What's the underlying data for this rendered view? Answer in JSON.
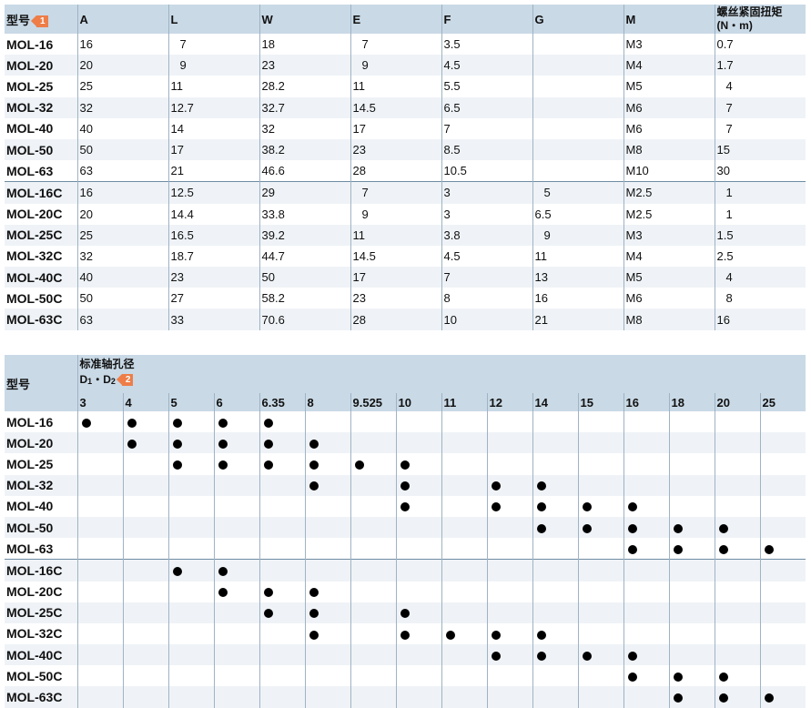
{
  "dim_table": {
    "model_label": "型号",
    "badge": "1",
    "columns": [
      "A",
      "L",
      "W",
      "E",
      "F",
      "G",
      "M"
    ],
    "torque_header_line1": "螺丝紧固扭矩",
    "torque_header_line2": "(N・m)",
    "rows": [
      {
        "model": "MOL-16",
        "A": "16",
        "L": "7",
        "W": "18",
        "E": "7",
        "F": "3.5",
        "G": "",
        "M": "M3",
        "T": "0.7"
      },
      {
        "model": "MOL-20",
        "A": "20",
        "L": "9",
        "W": "23",
        "E": "9",
        "F": "4.5",
        "G": "",
        "M": "M4",
        "T": "1.7"
      },
      {
        "model": "MOL-25",
        "A": "25",
        "L": "11",
        "W": "28.2",
        "E": "11",
        "F": "5.5",
        "G": "",
        "M": "M5",
        "T": "4"
      },
      {
        "model": "MOL-32",
        "A": "32",
        "L": "12.7",
        "W": "32.7",
        "E": "14.5",
        "F": "6.5",
        "G": "",
        "M": "M6",
        "T": "7"
      },
      {
        "model": "MOL-40",
        "A": "40",
        "L": "14",
        "W": "32",
        "E": "17",
        "F": "7",
        "G": "",
        "M": "M6",
        "T": "7"
      },
      {
        "model": "MOL-50",
        "A": "50",
        "L": "17",
        "W": "38.2",
        "E": "23",
        "F": "8.5",
        "G": "",
        "M": "M8",
        "T": "15"
      },
      {
        "model": "MOL-63",
        "A": "63",
        "L": "21",
        "W": "46.6",
        "E": "28",
        "F": "10.5",
        "G": "",
        "M": "M10",
        "T": "30"
      },
      {
        "model": "MOL-16C",
        "A": "16",
        "L": "12.5",
        "W": "29",
        "E": "7",
        "F": "3",
        "G": "5",
        "M": "M2.5",
        "T": "1"
      },
      {
        "model": "MOL-20C",
        "A": "20",
        "L": "14.4",
        "W": "33.8",
        "E": "9",
        "F": "3",
        "G": "6.5",
        "M": "M2.5",
        "T": "1"
      },
      {
        "model": "MOL-25C",
        "A": "25",
        "L": "16.5",
        "W": "39.2",
        "E": "11",
        "F": "3.8",
        "G": "9",
        "M": "M3",
        "T": "1.5"
      },
      {
        "model": "MOL-32C",
        "A": "32",
        "L": "18.7",
        "W": "44.7",
        "E": "14.5",
        "F": "4.5",
        "G": "11",
        "M": "M4",
        "T": "2.5"
      },
      {
        "model": "MOL-40C",
        "A": "40",
        "L": "23",
        "W": "50",
        "E": "17",
        "F": "7",
        "G": "13",
        "M": "M5",
        "T": "4"
      },
      {
        "model": "MOL-50C",
        "A": "50",
        "L": "27",
        "W": "58.2",
        "E": "23",
        "F": "8",
        "G": "16",
        "M": "M6",
        "T": "8"
      },
      {
        "model": "MOL-63C",
        "A": "63",
        "L": "33",
        "W": "70.6",
        "E": "28",
        "F": "10",
        "G": "21",
        "M": "M8",
        "T": "16"
      }
    ]
  },
  "bore_table": {
    "model_label": "型号",
    "title": "标准轴孔径",
    "sub_d": "D",
    "sub_1": "1",
    "sub_sep": "・D",
    "sub_2": "2",
    "badge": "2",
    "bores": [
      "3",
      "4",
      "5",
      "6",
      "6.35",
      "8",
      "9.525",
      "10",
      "11",
      "12",
      "14",
      "15",
      "16",
      "18",
      "20",
      "25"
    ],
    "rows": [
      {
        "model": "MOL-16",
        "sizes": [
          "3",
          "4",
          "5",
          "6",
          "6.35"
        ]
      },
      {
        "model": "MOL-20",
        "sizes": [
          "4",
          "5",
          "6",
          "6.35",
          "8"
        ]
      },
      {
        "model": "MOL-25",
        "sizes": [
          "5",
          "6",
          "6.35",
          "8",
          "9.525",
          "10"
        ]
      },
      {
        "model": "MOL-32",
        "sizes": [
          "8",
          "10",
          "12",
          "14"
        ]
      },
      {
        "model": "MOL-40",
        "sizes": [
          "10",
          "12",
          "14",
          "15",
          "16"
        ]
      },
      {
        "model": "MOL-50",
        "sizes": [
          "14",
          "15",
          "16",
          "18",
          "20"
        ]
      },
      {
        "model": "MOL-63",
        "sizes": [
          "16",
          "18",
          "20",
          "25"
        ]
      },
      {
        "model": "MOL-16C",
        "sizes": [
          "5",
          "6"
        ]
      },
      {
        "model": "MOL-20C",
        "sizes": [
          "6",
          "6.35",
          "8"
        ]
      },
      {
        "model": "MOL-25C",
        "sizes": [
          "6.35",
          "8",
          "10"
        ]
      },
      {
        "model": "MOL-32C",
        "sizes": [
          "8",
          "10",
          "11",
          "12",
          "14"
        ]
      },
      {
        "model": "MOL-40C",
        "sizes": [
          "12",
          "14",
          "15",
          "16"
        ]
      },
      {
        "model": "MOL-50C",
        "sizes": [
          "16",
          "18",
          "20"
        ]
      },
      {
        "model": "MOL-63C",
        "sizes": [
          "18",
          "20",
          "25"
        ]
      }
    ]
  }
}
